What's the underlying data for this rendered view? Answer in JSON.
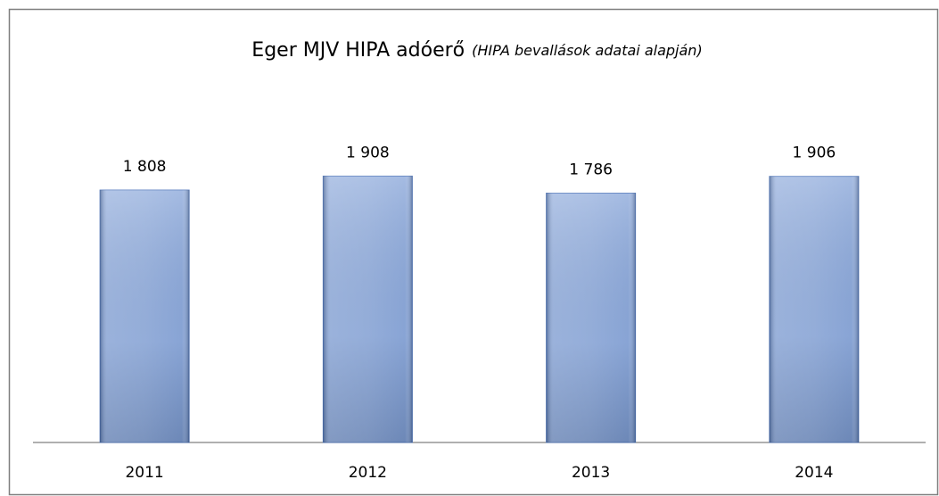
{
  "chart_data": {
    "type": "bar",
    "title": "Eger MJV HIPA adóerő",
    "subtitle": "(HIPA bevallások adatai alapján)",
    "categories": [
      "2011",
      "2012",
      "2013",
      "2014"
    ],
    "values": [
      1808,
      1908,
      1786,
      1906
    ],
    "value_labels": [
      "1 808",
      "1 908",
      "1 786",
      "1 906"
    ],
    "color": "#8eaadb",
    "ylim": [
      0,
      2000
    ]
  }
}
